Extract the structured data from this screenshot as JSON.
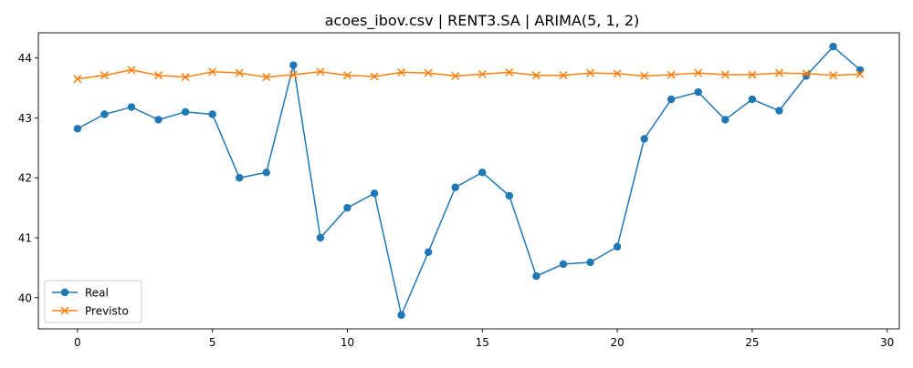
{
  "chart_data": {
    "type": "line",
    "title": "acoes_ibov.csv | RENT3.SA | ARIMA(5, 1, 2)",
    "xlabel": "",
    "ylabel": "",
    "xlim": [
      -1.45,
      30.45
    ],
    "ylim": [
      39.48,
      44.42
    ],
    "x_ticks": [
      0,
      5,
      10,
      15,
      20,
      25,
      30
    ],
    "y_ticks": [
      40,
      41,
      42,
      43,
      44
    ],
    "grid": false,
    "legend_position": "lower-left",
    "x": [
      0,
      1,
      2,
      3,
      4,
      5,
      6,
      7,
      8,
      9,
      10,
      11,
      12,
      13,
      14,
      15,
      16,
      17,
      18,
      19,
      20,
      21,
      22,
      23,
      24,
      25,
      26,
      27,
      28,
      29
    ],
    "series": [
      {
        "name": "Real",
        "color": "#1f77b4",
        "marker": "circle",
        "values": [
          42.82,
          43.06,
          43.18,
          42.97,
          43.1,
          43.06,
          42.0,
          42.09,
          43.88,
          41.0,
          41.5,
          41.74,
          39.71,
          40.76,
          41.84,
          42.09,
          41.7,
          40.36,
          40.56,
          40.59,
          40.85,
          42.65,
          43.31,
          43.43,
          42.97,
          43.31,
          43.12,
          43.7,
          44.19,
          43.8
        ]
      },
      {
        "name": "Previsto",
        "color": "#ff7f0e",
        "marker": "x",
        "values": [
          43.65,
          43.71,
          43.8,
          43.71,
          43.68,
          43.77,
          43.75,
          43.68,
          43.72,
          43.77,
          43.71,
          43.69,
          43.76,
          43.75,
          43.7,
          43.73,
          43.76,
          43.71,
          43.71,
          43.75,
          43.74,
          43.7,
          43.72,
          43.75,
          43.72,
          43.72,
          43.75,
          43.74,
          43.71,
          43.73
        ]
      }
    ]
  }
}
